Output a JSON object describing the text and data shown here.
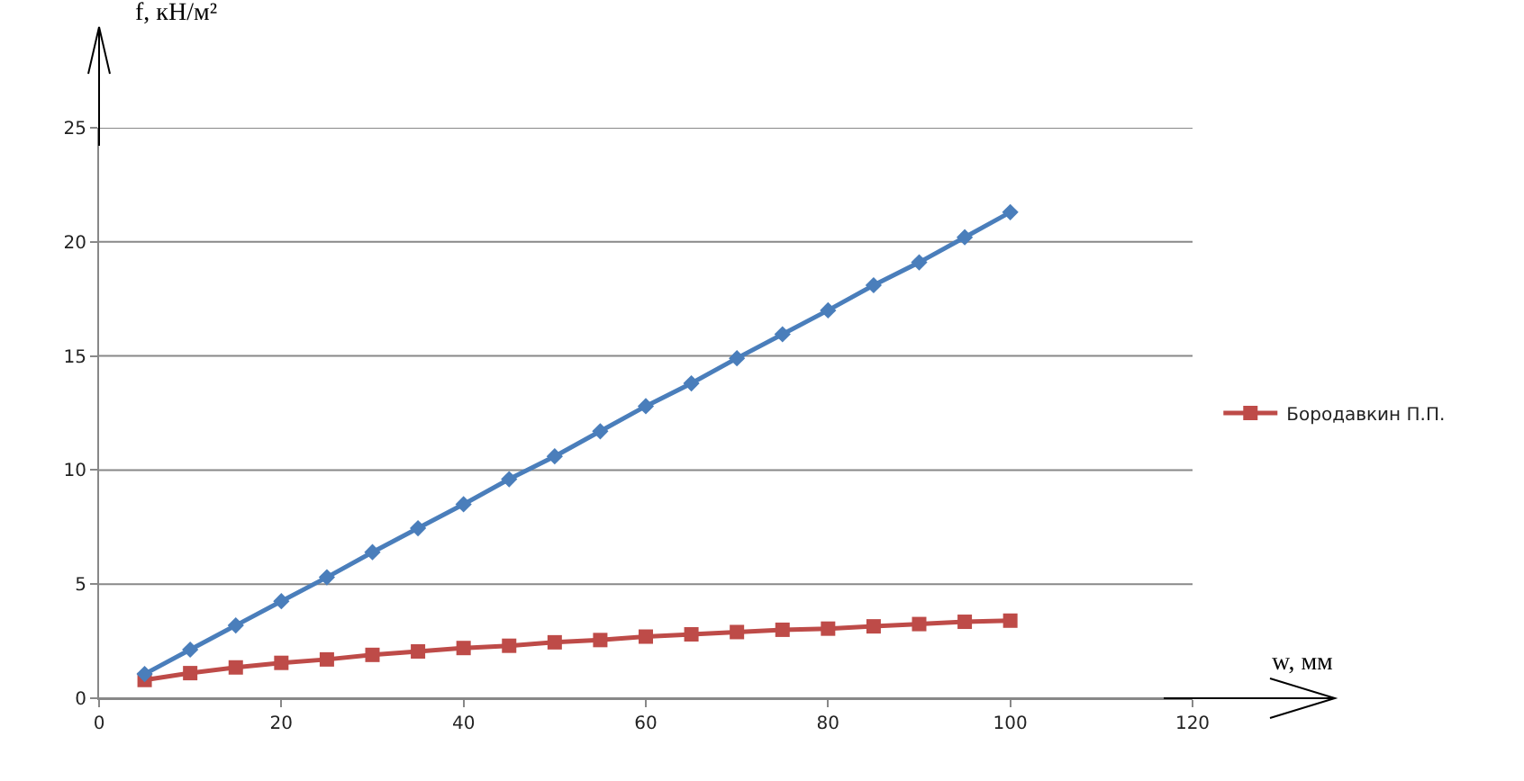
{
  "chart_data": {
    "type": "line",
    "xlabel": "w, мм",
    "ylabel": "f, кН/м²",
    "x": [
      5,
      10,
      15,
      20,
      25,
      30,
      35,
      40,
      45,
      50,
      55,
      60,
      65,
      70,
      75,
      80,
      85,
      90,
      95,
      100
    ],
    "series": [
      {
        "color": "#4a7ebb",
        "marker": "diamond",
        "values": [
          1.06,
          2.13,
          3.19,
          4.25,
          5.3,
          6.4,
          7.45,
          8.5,
          9.6,
          10.6,
          11.7,
          12.8,
          13.8,
          14.9,
          15.95,
          17.0,
          18.1,
          19.1,
          20.2,
          21.3
        ]
      },
      {
        "name": "Бородавкин П.П.",
        "color": "#be4b48",
        "marker": "square",
        "values": [
          0.8,
          1.1,
          1.35,
          1.55,
          1.7,
          1.9,
          2.05,
          2.2,
          2.3,
          2.45,
          2.55,
          2.7,
          2.8,
          2.9,
          3.0,
          3.05,
          3.15,
          3.25,
          3.35,
          3.4
        ]
      }
    ],
    "xlim": [
      0,
      120
    ],
    "xticks": [
      0,
      20,
      40,
      60,
      80,
      100,
      120
    ],
    "ylim": [
      0,
      25
    ],
    "yticks": [
      0,
      5,
      10,
      15,
      20,
      25
    ],
    "grid": "y",
    "legend": "right",
    "line_style": "solid"
  }
}
